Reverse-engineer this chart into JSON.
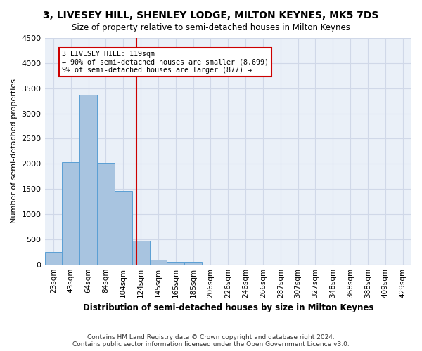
{
  "title": "3, LIVESEY HILL, SHENLEY LODGE, MILTON KEYNES, MK5 7DS",
  "subtitle": "Size of property relative to semi-detached houses in Milton Keynes",
  "xlabel": "Distribution of semi-detached houses by size in Milton Keynes",
  "ylabel": "Number of semi-detached properties",
  "footer_line1": "Contains HM Land Registry data © Crown copyright and database right 2024.",
  "footer_line2": "Contains public sector information licensed under the Open Government Licence v3.0.",
  "bin_labels": [
    "23sqm",
    "43sqm",
    "64sqm",
    "84sqm",
    "104sqm",
    "124sqm",
    "145sqm",
    "165sqm",
    "185sqm",
    "206sqm",
    "226sqm",
    "246sqm",
    "266sqm",
    "287sqm",
    "307sqm",
    "327sqm",
    "348sqm",
    "368sqm",
    "388sqm",
    "409sqm",
    "429sqm"
  ],
  "bar_values": [
    250,
    2030,
    3370,
    2020,
    1460,
    470,
    100,
    55,
    50,
    0,
    0,
    0,
    0,
    0,
    0,
    0,
    0,
    0,
    0,
    0,
    0
  ],
  "bar_color": "#a8c4e0",
  "bar_edge_color": "#5a9fd4",
  "grid_color": "#d0d8e8",
  "background_color": "#eaf0f8",
  "property_line_x": 4.75,
  "annotation_text_line1": "3 LIVESEY HILL: 119sqm",
  "annotation_text_line2": "← 90% of semi-detached houses are smaller (8,699)",
  "annotation_text_line3": "9% of semi-detached houses are larger (877) →",
  "red_line_color": "#cc0000",
  "annotation_box_color": "#ffffff",
  "annotation_box_edge": "#cc0000",
  "ylim": [
    0,
    4500
  ],
  "yticks": [
    0,
    500,
    1000,
    1500,
    2000,
    2500,
    3000,
    3500,
    4000,
    4500
  ]
}
